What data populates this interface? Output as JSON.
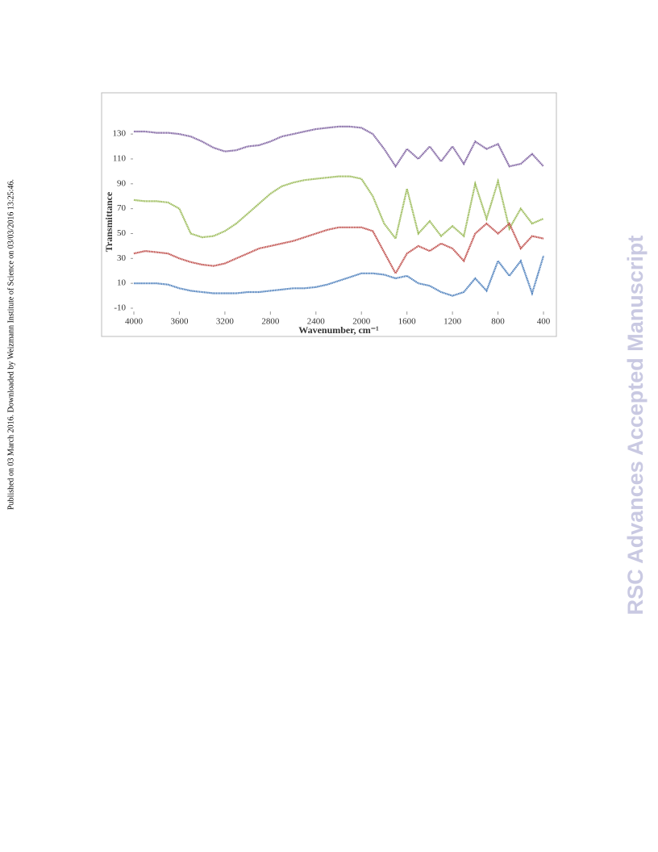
{
  "page": {
    "side_note": "Published on 03 March 2016. Downloaded by Weizmann Institute of Science on 03/03/2016 13:25:46.",
    "watermark": "RSC Advances Accepted Manuscript"
  },
  "chart_data": {
    "type": "line",
    "xlabel": "Wavenumber, cm⁻¹",
    "ylabel": "Transmittance",
    "x": [
      4000,
      3900,
      3800,
      3700,
      3600,
      3500,
      3400,
      3300,
      3200,
      3100,
      3000,
      2900,
      2800,
      2700,
      2600,
      2500,
      2400,
      2300,
      2200,
      2100,
      2000,
      1900,
      1800,
      1700,
      1600,
      1500,
      1400,
      1300,
      1200,
      1100,
      1000,
      900,
      800,
      700,
      600,
      500,
      400
    ],
    "xlim": [
      4000,
      400
    ],
    "xticks": [
      4000,
      3600,
      3200,
      2800,
      2400,
      2000,
      1600,
      1200,
      800,
      400
    ],
    "ylim": [
      -10,
      145
    ],
    "yticks": [
      -10,
      10,
      30,
      50,
      70,
      90,
      110,
      130
    ],
    "series": [
      {
        "color": "#8064a2",
        "values": [
          132,
          132,
          131,
          131,
          130,
          128,
          124,
          119,
          116,
          117,
          120,
          121,
          124,
          128,
          130,
          132,
          134,
          135,
          136,
          136,
          135,
          130,
          118,
          104,
          118,
          110,
          120,
          108,
          120,
          106,
          124,
          118,
          122,
          104,
          106,
          114,
          104
        ]
      },
      {
        "color": "#9bbb59",
        "values": [
          77,
          76,
          76,
          75,
          70,
          50,
          47,
          48,
          52,
          58,
          66,
          74,
          82,
          88,
          91,
          93,
          94,
          95,
          96,
          96,
          94,
          80,
          58,
          46,
          86,
          50,
          60,
          48,
          56,
          48,
          90,
          62,
          92,
          54,
          70,
          58,
          62
        ]
      },
      {
        "color": "#c0504d",
        "values": [
          34,
          36,
          35,
          34,
          30,
          27,
          25,
          24,
          26,
          30,
          34,
          38,
          40,
          42,
          44,
          47,
          50,
          53,
          55,
          55,
          55,
          52,
          35,
          18,
          34,
          40,
          36,
          42,
          38,
          28,
          50,
          58,
          50,
          58,
          38,
          48,
          46
        ]
      },
      {
        "color": "#4f81bd",
        "values": [
          10,
          10,
          10,
          9,
          6,
          4,
          3,
          2,
          2,
          2,
          3,
          3,
          4,
          5,
          6,
          6,
          7,
          9,
          12,
          15,
          18,
          18,
          17,
          14,
          16,
          10,
          8,
          3,
          0,
          3,
          14,
          4,
          28,
          16,
          28,
          2,
          32
        ]
      }
    ]
  }
}
